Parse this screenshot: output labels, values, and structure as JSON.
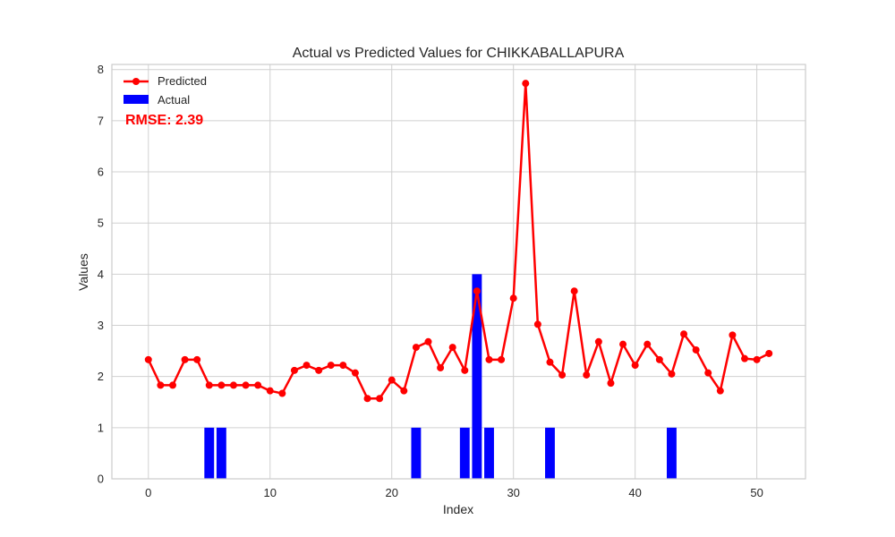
{
  "chart_data": {
    "type": "bar+line",
    "title": "Actual vs Predicted Values for CHIKKABALLAPURA",
    "xlabel": "Index",
    "ylabel": "Values",
    "xlim": [
      -3,
      54
    ],
    "ylim": [
      0,
      8.1
    ],
    "xticks": [
      0,
      10,
      20,
      30,
      40,
      50
    ],
    "yticks": [
      0,
      1,
      2,
      3,
      4,
      5,
      6,
      7,
      8
    ],
    "grid": true,
    "legend_position": "top-left",
    "annotation": "RMSE: 2.39",
    "series": [
      {
        "name": "Predicted",
        "kind": "line",
        "marker": "circle",
        "color": "#ff0000",
        "x": [
          0,
          1,
          2,
          3,
          4,
          5,
          6,
          7,
          8,
          9,
          10,
          11,
          12,
          13,
          14,
          15,
          16,
          17,
          18,
          19,
          20,
          21,
          22,
          23,
          24,
          25,
          26,
          27,
          28,
          29,
          30,
          31,
          32,
          33,
          34,
          35,
          36,
          37,
          38,
          39,
          40,
          41,
          42,
          43,
          44,
          45,
          46,
          47,
          48,
          49,
          50,
          51
        ],
        "values": [
          2.33,
          1.83,
          1.83,
          2.33,
          2.33,
          1.83,
          1.83,
          1.83,
          1.83,
          1.83,
          1.72,
          1.67,
          2.12,
          2.22,
          2.12,
          2.22,
          2.22,
          2.07,
          1.57,
          1.57,
          1.93,
          1.72,
          2.57,
          2.68,
          2.17,
          2.57,
          2.12,
          3.67,
          2.33,
          2.33,
          3.53,
          7.73,
          3.02,
          2.28,
          2.03,
          3.67,
          2.03,
          2.68,
          1.87,
          2.63,
          2.22,
          2.63,
          2.33,
          2.05,
          2.83,
          2.52,
          2.07,
          1.72,
          2.81,
          2.35,
          2.33,
          2.45
        ]
      },
      {
        "name": "Actual",
        "kind": "bar",
        "color": "#0000ff",
        "x": [
          5,
          6,
          22,
          26,
          27,
          28,
          33,
          43
        ],
        "values": [
          1,
          1,
          1,
          1,
          4,
          1,
          1,
          1
        ]
      }
    ]
  },
  "colors": {
    "predicted": "#ff0000",
    "actual": "#0000ff",
    "annotation": "#ff0000",
    "grid": "#d0d0d0",
    "frame": "#cccccc"
  }
}
